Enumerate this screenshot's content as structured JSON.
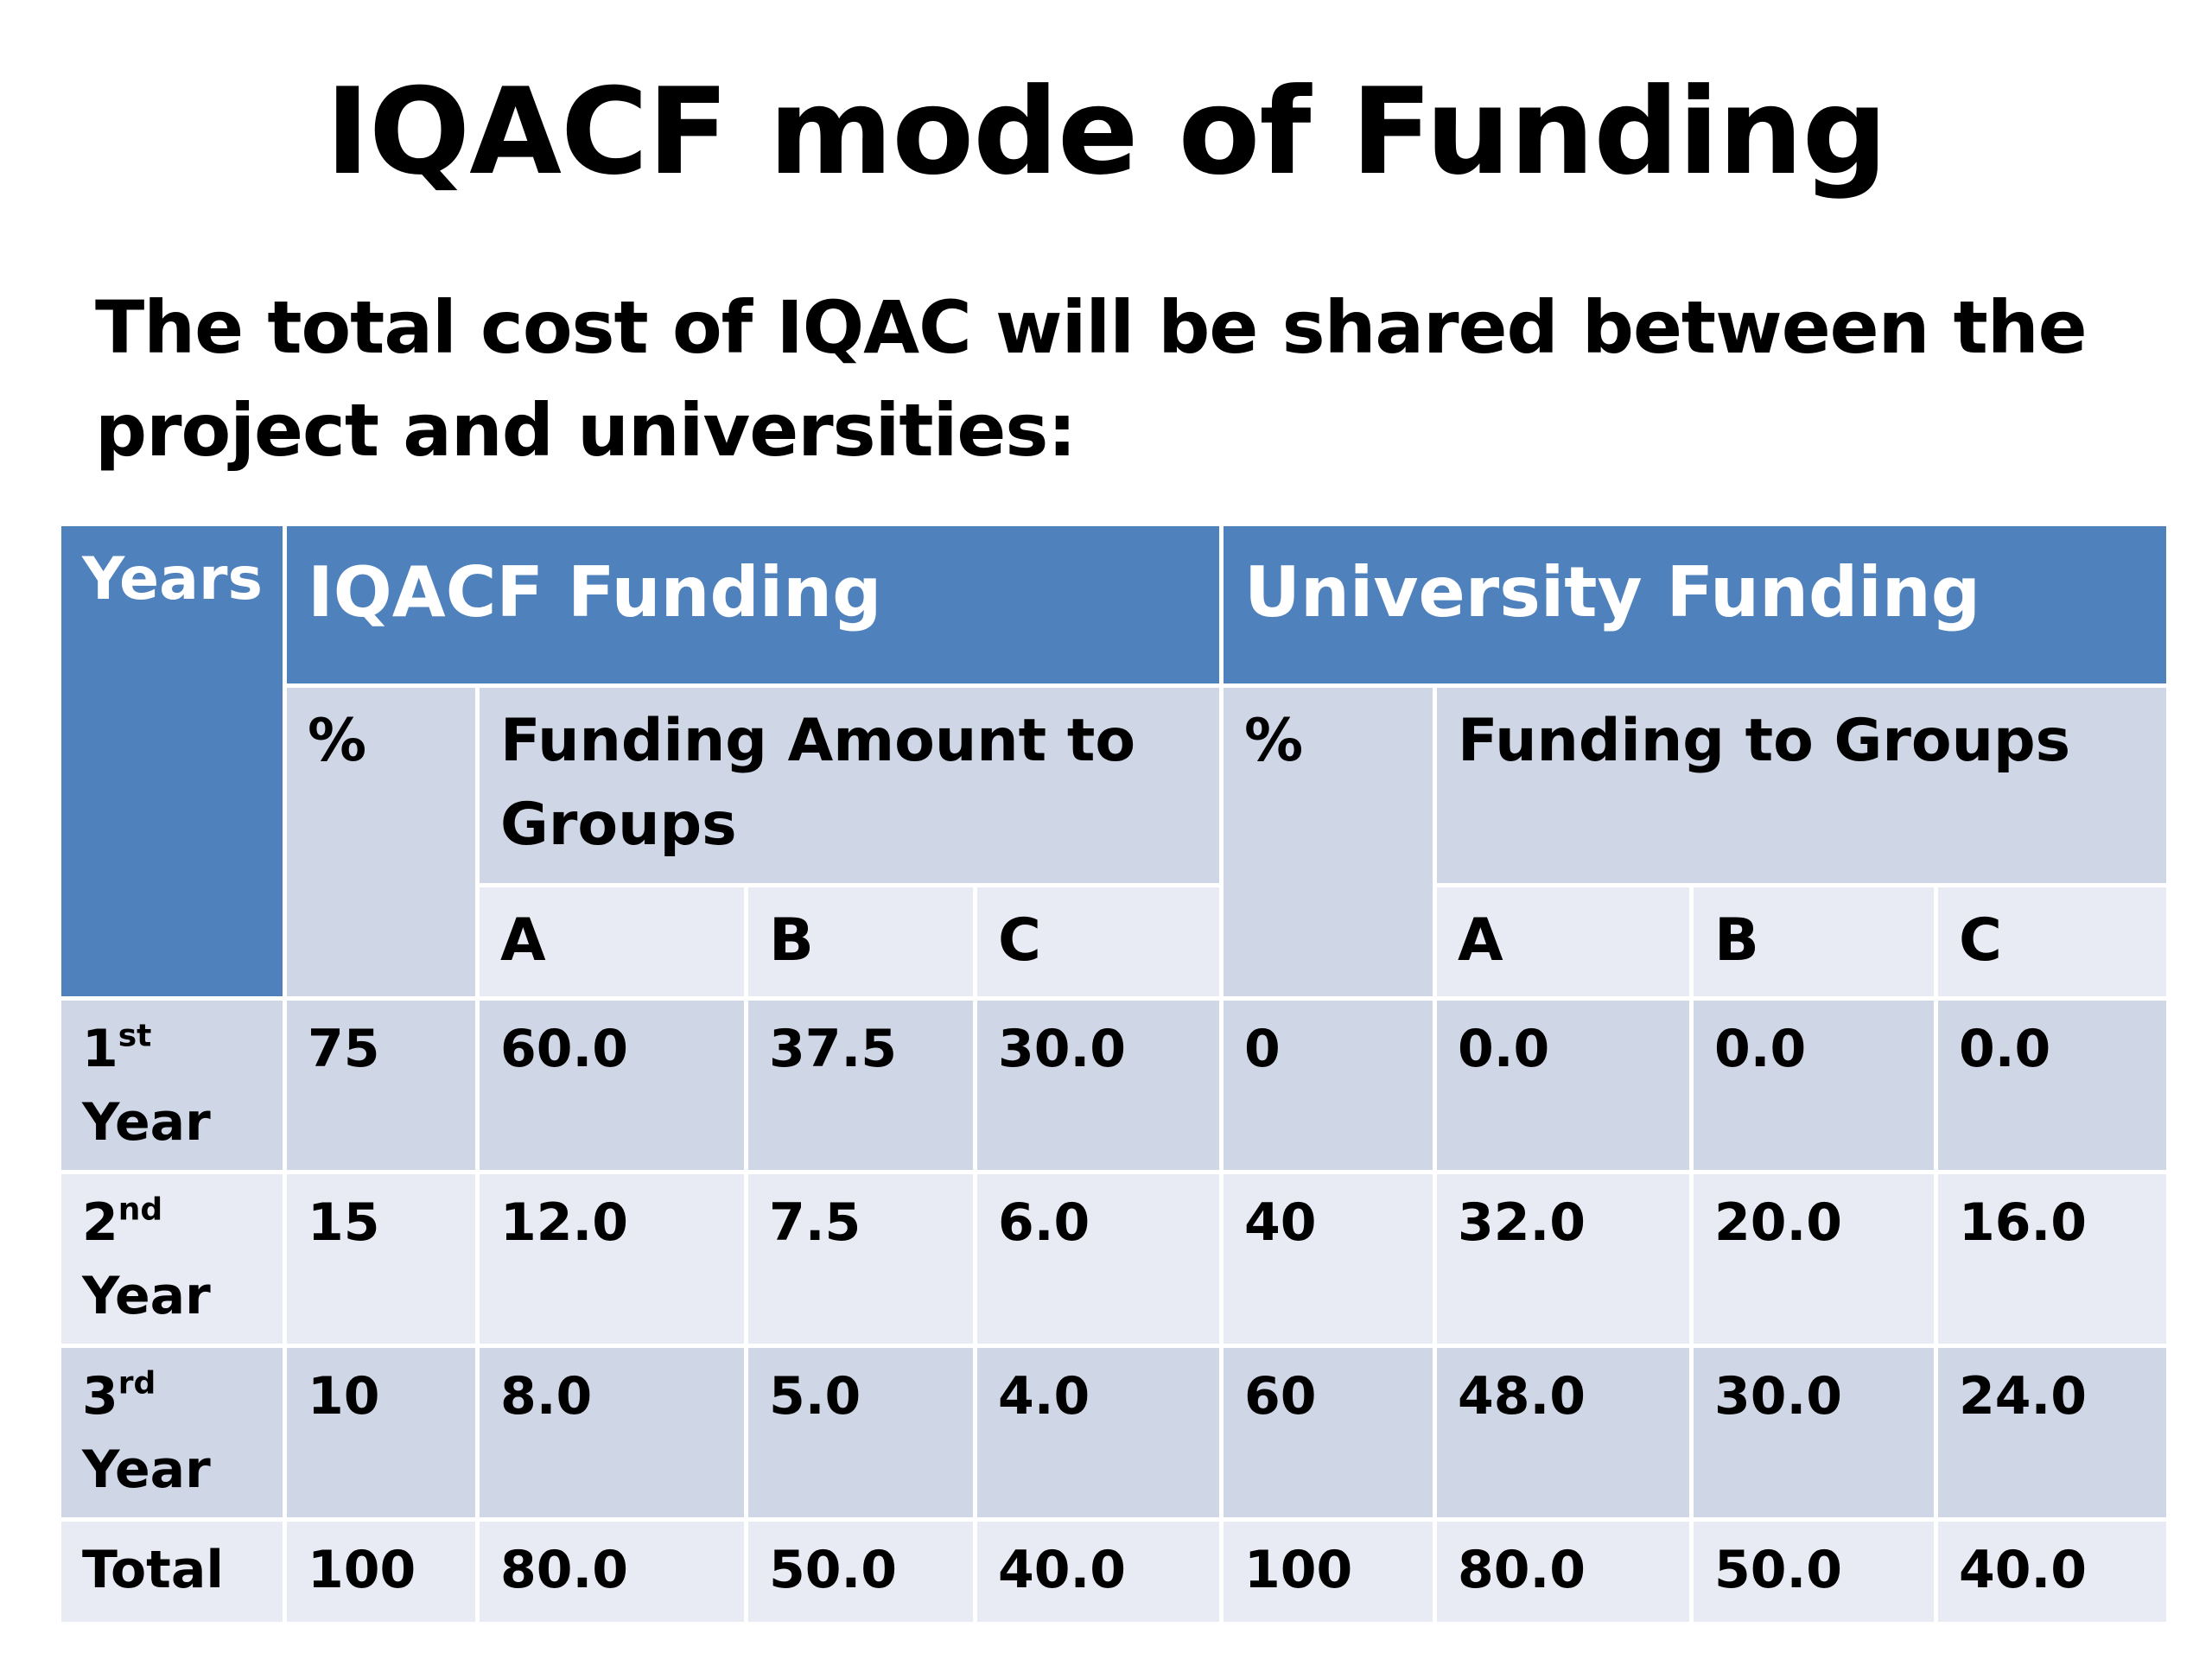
{
  "slide": {
    "title": "IQACF mode of Funding",
    "subtitle": "The total cost of IQAC will be shared between the project and universities:"
  },
  "table": {
    "header": {
      "years": "Years",
      "iqacf_funding": "IQACF Funding",
      "university_funding": "University Funding",
      "iqacf_percent": "%",
      "iqacf_amount": "Funding Amount to Groups",
      "university_percent": "%",
      "university_groups": "Funding to Groups",
      "group_a": "A",
      "group_b": "B",
      "group_c": "C"
    },
    "rows": [
      {
        "year_num": "1",
        "year_sup": "st",
        "year_word": "Year",
        "iqacf_pct": "75",
        "iqacf_a": "60.0",
        "iqacf_b": "37.5",
        "iqacf_c": "30.0",
        "univ_pct": "0",
        "univ_a": "0.0",
        "univ_b": "0.0",
        "univ_c": "0.0"
      },
      {
        "year_num": "2",
        "year_sup": "nd",
        "year_word": "Year",
        "iqacf_pct": "15",
        "iqacf_a": "12.0",
        "iqacf_b": "7.5",
        "iqacf_c": "6.0",
        "univ_pct": "40",
        "univ_a": "32.0",
        "univ_b": "20.0",
        "univ_c": "16.0"
      },
      {
        "year_num": "3",
        "year_sup": "rd",
        "year_word": "Year",
        "iqacf_pct": "10",
        "iqacf_a": "8.0",
        "iqacf_b": "5.0",
        "iqacf_c": "4.0",
        "univ_pct": "60",
        "univ_a": "48.0",
        "univ_b": "30.0",
        "univ_c": "24.0"
      }
    ],
    "total": {
      "label": "Total",
      "iqacf_pct": "100",
      "iqacf_a": "80.0",
      "iqacf_b": "50.0",
      "iqacf_c": "40.0",
      "univ_pct": "100",
      "univ_a": "80.0",
      "univ_b": "50.0",
      "univ_c": "40.0"
    },
    "colors": {
      "header_blue": "#4f81bd",
      "band_dark": "#cfd6e6",
      "band_light": "#e8ebf4"
    }
  }
}
